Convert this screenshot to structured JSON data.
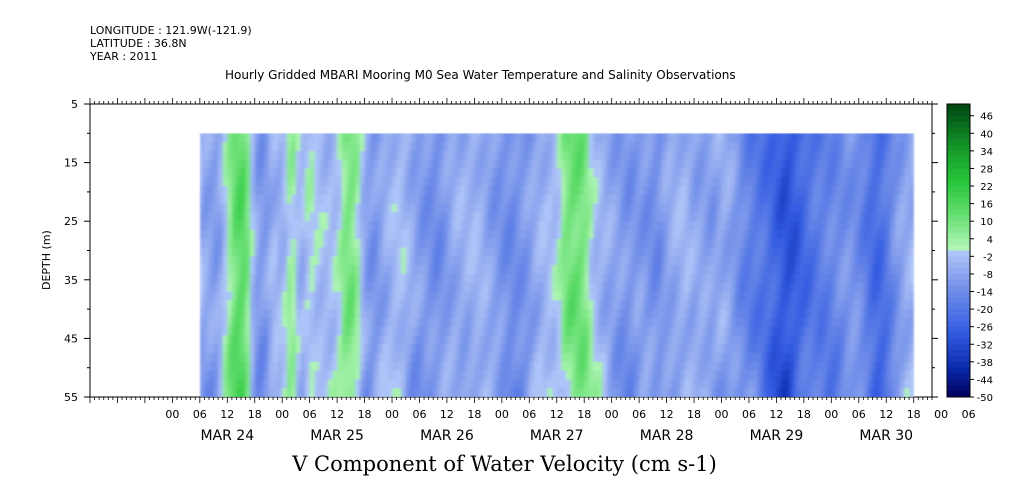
{
  "header": {
    "longitude": "LONGITUDE : 121.9W(-121.9)",
    "latitude": "LATITUDE : 36.8N",
    "year": "YEAR : 2011"
  },
  "chart_data": {
    "type": "heatmap",
    "title": "Hourly Gridded MBARI Mooring M0 Sea Water Temperature and Salinity Observations",
    "caption": "V Component of Water Velocity (cm s-1)",
    "ylabel": "DEPTH (m)",
    "y_ticks": [
      "5",
      "15",
      "25",
      "35",
      "45",
      "55"
    ],
    "ylim": [
      55,
      5
    ],
    "data_depth_range": [
      10,
      55
    ],
    "x_hour_ticks": [
      "00",
      "06",
      "12",
      "18",
      "00",
      "06",
      "12",
      "18",
      "00",
      "06",
      "12",
      "18",
      "00",
      "06",
      "12",
      "18",
      "00",
      "06",
      "12",
      "18",
      "00",
      "06",
      "12",
      "18",
      "00",
      "06",
      "12",
      "18",
      "00",
      "06"
    ],
    "x_day_labels": [
      "MAR 24",
      "MAR 25",
      "MAR 26",
      "MAR 27",
      "MAR 28",
      "MAR 29",
      "MAR 30"
    ],
    "x_range_hours_from_mar24_00": [
      -18,
      166
    ],
    "data_time_range_hours": [
      6,
      162
    ],
    "colorbar_labels": [
      "46",
      "40",
      "34",
      "28",
      "22",
      "16",
      "10",
      "4",
      "-2",
      "-8",
      "-14",
      "-20",
      "-26",
      "-32",
      "-38",
      "-44",
      "-50"
    ],
    "colorbar_min": -50,
    "colorbar_max": 50,
    "grid": false,
    "v_profile_midcolumn": [
      [
        6,
        -6
      ],
      [
        10,
        -10
      ],
      [
        14,
        14
      ],
      [
        16,
        14
      ],
      [
        18,
        -8
      ],
      [
        20,
        -12
      ],
      [
        22,
        -4
      ],
      [
        24,
        -6
      ],
      [
        26,
        6
      ],
      [
        28,
        -6
      ],
      [
        30,
        2
      ],
      [
        32,
        -2
      ],
      [
        34,
        -4
      ],
      [
        36,
        -2
      ],
      [
        38,
        10
      ],
      [
        40,
        8
      ],
      [
        42,
        -8
      ],
      [
        44,
        -12
      ],
      [
        46,
        -8
      ],
      [
        48,
        -4
      ],
      [
        50,
        -2
      ],
      [
        52,
        -6
      ],
      [
        54,
        -10
      ],
      [
        56,
        -12
      ],
      [
        58,
        -14
      ],
      [
        60,
        -10
      ],
      [
        62,
        -6
      ],
      [
        64,
        -6
      ],
      [
        66,
        -4
      ],
      [
        68,
        -6
      ],
      [
        70,
        -10
      ],
      [
        72,
        -12
      ],
      [
        74,
        -14
      ],
      [
        76,
        -12
      ],
      [
        78,
        -10
      ],
      [
        80,
        -6
      ],
      [
        82,
        -4
      ],
      [
        84,
        -2
      ],
      [
        86,
        10
      ],
      [
        88,
        12
      ],
      [
        90,
        10
      ],
      [
        92,
        -2
      ],
      [
        94,
        -6
      ],
      [
        96,
        -8
      ],
      [
        98,
        -10
      ],
      [
        100,
        -12
      ],
      [
        102,
        -10
      ],
      [
        104,
        -12
      ],
      [
        106,
        -14
      ],
      [
        108,
        -8
      ],
      [
        110,
        -6
      ],
      [
        112,
        -4
      ],
      [
        114,
        -8
      ],
      [
        116,
        -8
      ],
      [
        118,
        -10
      ],
      [
        120,
        -6
      ],
      [
        122,
        -8
      ],
      [
        124,
        -14
      ],
      [
        126,
        -18
      ],
      [
        128,
        -20
      ],
      [
        130,
        -22
      ],
      [
        132,
        -26
      ],
      [
        134,
        -30
      ],
      [
        136,
        -28
      ],
      [
        138,
        -24
      ],
      [
        140,
        -20
      ],
      [
        142,
        -18
      ],
      [
        144,
        -16
      ],
      [
        146,
        -14
      ],
      [
        148,
        -12
      ],
      [
        150,
        -14
      ],
      [
        152,
        -20
      ],
      [
        154,
        -24
      ],
      [
        156,
        -20
      ],
      [
        158,
        -12
      ],
      [
        160,
        -8
      ],
      [
        162,
        -6
      ]
    ]
  }
}
